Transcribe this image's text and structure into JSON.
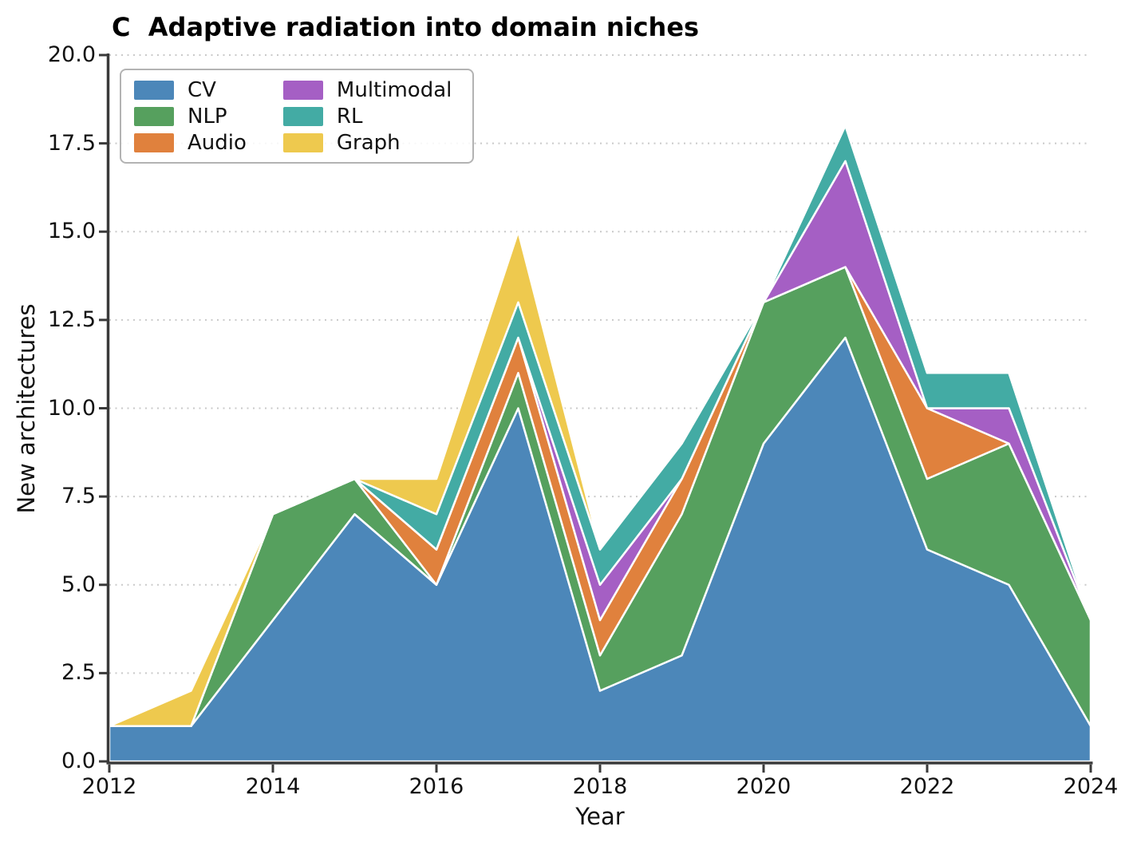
{
  "title": "C  Adaptive radiation into domain niches",
  "axes": {
    "xlabel": "Year",
    "ylabel": "New architectures",
    "x_tick_labels": [
      "2012",
      "2014",
      "2016",
      "2018",
      "2020",
      "2022",
      "2024"
    ],
    "y_tick_labels": [
      "0.0",
      "2.5",
      "5.0",
      "7.5",
      "10.0",
      "12.5",
      "15.0",
      "17.5",
      "20.0"
    ]
  },
  "legend": {
    "position": "upper left",
    "columns": 2,
    "items": [
      {
        "label": "CV",
        "color": "#4c87b9"
      },
      {
        "label": "NLP",
        "color": "#56a05e"
      },
      {
        "label": "Audio",
        "color": "#e0813d"
      },
      {
        "label": "Multimodal",
        "color": "#a55fc4"
      },
      {
        "label": "RL",
        "color": "#43aba4"
      },
      {
        "label": "Graph",
        "color": "#eec94e"
      }
    ]
  },
  "chart_data": {
    "type": "area",
    "stacked": true,
    "title": "C  Adaptive radiation into domain niches",
    "xlabel": "Year",
    "ylabel": "New architectures",
    "x": [
      2012,
      2013,
      2014,
      2015,
      2016,
      2017,
      2018,
      2019,
      2020,
      2021,
      2022,
      2023,
      2024
    ],
    "series": [
      {
        "name": "CV",
        "color": "#4c87b9",
        "values": [
          1,
          1,
          4,
          7,
          5,
          10,
          2,
          3,
          9,
          12,
          6,
          5,
          1
        ]
      },
      {
        "name": "NLP",
        "color": "#56a05e",
        "values": [
          0,
          0,
          3,
          1,
          0,
          1,
          1,
          4,
          4,
          2,
          2,
          4,
          3
        ]
      },
      {
        "name": "Audio",
        "color": "#e0813d",
        "values": [
          0,
          0,
          0,
          0,
          1,
          1,
          1,
          1,
          0,
          0,
          2,
          0,
          0
        ]
      },
      {
        "name": "Multimodal",
        "color": "#a55fc4",
        "values": [
          0,
          0,
          0,
          0,
          0,
          0,
          1,
          0,
          0,
          3,
          0,
          1,
          0
        ]
      },
      {
        "name": "RL",
        "color": "#43aba4",
        "values": [
          0,
          0,
          0,
          0,
          1,
          1,
          1,
          1,
          0,
          1,
          1,
          1,
          0
        ]
      },
      {
        "name": "Graph",
        "color": "#eec94e",
        "values": [
          0,
          1,
          0,
          0,
          1,
          2,
          0,
          0,
          0,
          0,
          0,
          0,
          0
        ]
      }
    ],
    "stack_totals": [
      1,
      2,
      7,
      8,
      8,
      15,
      6,
      9,
      13,
      18,
      11,
      11,
      4
    ],
    "xlim": [
      2012,
      2024
    ],
    "ylim": [
      0,
      20
    ],
    "x_ticks": [
      2012,
      2014,
      2016,
      2018,
      2020,
      2022,
      2024
    ],
    "y_ticks": [
      0,
      2.5,
      5,
      7.5,
      10,
      12.5,
      15,
      17.5,
      20
    ],
    "grid": "horizontal dotted",
    "legend_position": "upper left",
    "area_edge_color": "#ffffff"
  },
  "style_colors": {
    "spine": "#3a3a3a",
    "grid": "#c9c9c9",
    "background": "#ffffff",
    "text": "#111111"
  }
}
